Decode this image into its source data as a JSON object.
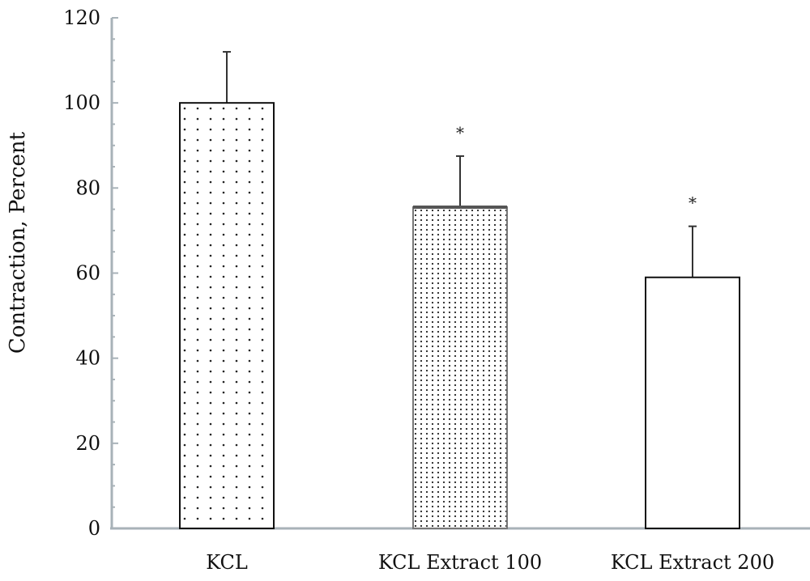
{
  "chart_data": {
    "type": "bar",
    "title": "",
    "xlabel": "",
    "ylabel": "Contraction, Percent",
    "ylim": [
      0,
      120
    ],
    "yticks": [
      0,
      20,
      40,
      60,
      80,
      100,
      120
    ],
    "yticks_labels": [
      "0",
      "20",
      "40",
      "60",
      "80",
      "100",
      "120"
    ],
    "categories": [
      "KCL",
      "KCL Extract 100",
      "KCL Extract 200"
    ],
    "values": [
      100,
      75.5,
      59
    ],
    "error_upper": [
      12,
      12,
      12
    ],
    "annotations": [
      "",
      "*",
      "*"
    ],
    "patterns": [
      "sparse-dots",
      "dense-dots",
      "none"
    ],
    "grid": false,
    "legend": "none",
    "colors": {
      "bar_stroke": "#111111",
      "bar_fill": "#ffffff",
      "axis": "#a8b2b8",
      "dots": "#222222"
    }
  }
}
